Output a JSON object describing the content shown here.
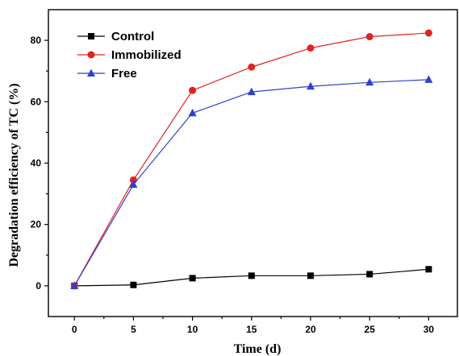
{
  "chart_data": {
    "type": "line",
    "title": "",
    "xlabel": "Time (d)",
    "ylabel": "Degradation efficiency of TC (%)",
    "x": [
      0,
      5,
      10,
      15,
      20,
      25,
      30
    ],
    "xlim": [
      -2.2,
      32.5
    ],
    "ylim": [
      -10,
      90
    ],
    "xticks": [
      0,
      5,
      10,
      15,
      20,
      25,
      30
    ],
    "yticks": [
      0,
      20,
      40,
      60,
      80
    ],
    "grid": false,
    "legend_position": "top-left",
    "series": [
      {
        "name": "Control",
        "marker": "square",
        "color": "#000000",
        "values": [
          0,
          0.3,
          2.5,
          3.3,
          3.3,
          3.8,
          5.4
        ]
      },
      {
        "name": "Immobilized",
        "marker": "circle",
        "color": "#e32222",
        "values": [
          0,
          34.5,
          63.7,
          71.3,
          77.5,
          81.2,
          82.4
        ]
      },
      {
        "name": "Free",
        "marker": "triangle",
        "color": "#2f3fd0",
        "values": [
          0,
          33,
          56.3,
          63.2,
          65,
          66.3,
          67.2
        ]
      }
    ]
  }
}
